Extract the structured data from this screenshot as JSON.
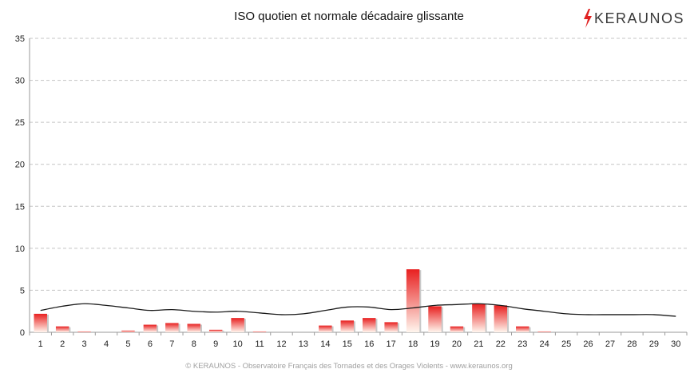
{
  "title": "ISO quotien et normale décadaire glissante",
  "logo": {
    "text": "KERAUNOS",
    "bolt_color": "#e02020"
  },
  "footer": "© KERAUNOS - Observatoire Français des Tornades et des Orages Violents - www.keraunos.org",
  "chart_data": {
    "type": "bar",
    "title": "ISO quotien et normale décadaire glissante",
    "xlabel": "",
    "ylabel": "",
    "ylim": [
      0,
      35
    ],
    "yticks": [
      0,
      5,
      10,
      15,
      20,
      25,
      30,
      35
    ],
    "grid": true,
    "categories": [
      "1",
      "2",
      "3",
      "4",
      "5",
      "6",
      "7",
      "8",
      "9",
      "10",
      "11",
      "12",
      "13",
      "14",
      "15",
      "16",
      "17",
      "18",
      "19",
      "20",
      "21",
      "22",
      "23",
      "24",
      "25",
      "26",
      "27",
      "28",
      "29",
      "30"
    ],
    "series": [
      {
        "kind": "bar",
        "color": "#e82020",
        "values": [
          2.2,
          0.7,
          0.1,
          0,
          0.2,
          0.9,
          1.1,
          1.0,
          0.3,
          1.7,
          0.1,
          0,
          0,
          0.8,
          1.4,
          1.7,
          1.2,
          7.5,
          3.1,
          0.7,
          3.4,
          3.2,
          0.7,
          0.1,
          0,
          0,
          0,
          0,
          0,
          0
        ]
      },
      {
        "kind": "line",
        "color": "#1a1a1a",
        "values": [
          2.6,
          3.1,
          3.4,
          3.2,
          2.9,
          2.6,
          2.7,
          2.5,
          2.4,
          2.5,
          2.3,
          2.1,
          2.2,
          2.6,
          3.0,
          3.0,
          2.7,
          2.9,
          3.2,
          3.3,
          3.4,
          3.2,
          2.8,
          2.5,
          2.2,
          2.1,
          2.1,
          2.1,
          2.1,
          1.9
        ]
      }
    ]
  }
}
